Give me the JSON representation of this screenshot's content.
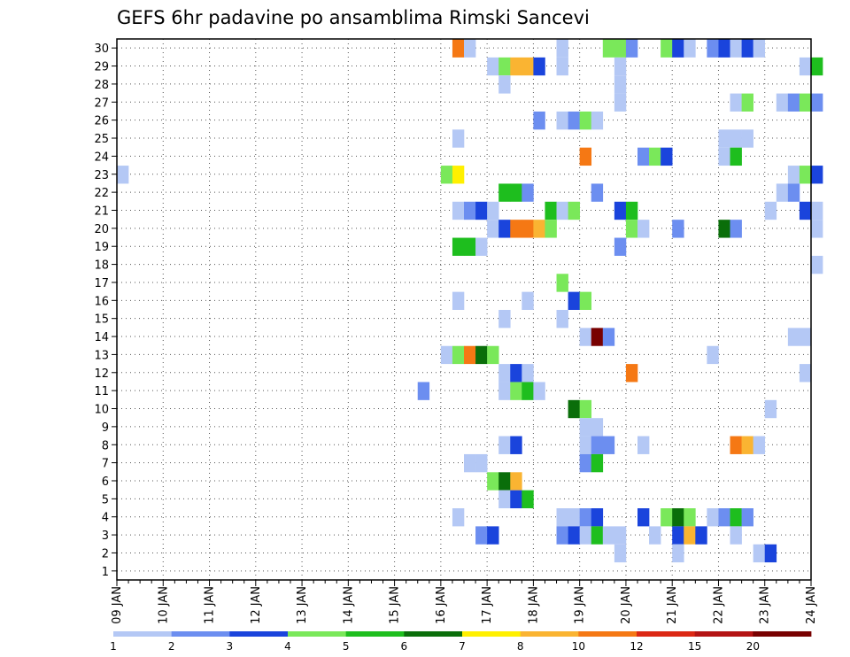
{
  "chart_data": {
    "type": "heatmap",
    "title": "GEFS 6hr padavine po ansamblima Rimski Sancevi",
    "xlabel": "",
    "ylabel": "",
    "x_tick_labels": [
      "09 JAN",
      "10 JAN",
      "11 JAN",
      "12 JAN",
      "13 JAN",
      "14 JAN",
      "15 JAN",
      "16 JAN",
      "17 JAN",
      "18 JAN",
      "19 JAN",
      "20 JAN",
      "21 JAN",
      "22 JAN",
      "23 JAN",
      "24 JAN"
    ],
    "y_tick_labels": [
      "1",
      "2",
      "3",
      "4",
      "5",
      "6",
      "7",
      "8",
      "9",
      "10",
      "11",
      "12",
      "13",
      "14",
      "15",
      "16",
      "17",
      "18",
      "19",
      "20",
      "21",
      "22",
      "23",
      "24",
      "25",
      "26",
      "27",
      "28",
      "29",
      "30"
    ],
    "x_step": "6hr",
    "x_range": [
      "09 JAN",
      "24 JAN"
    ],
    "y_range": [
      1,
      30
    ],
    "grid": true,
    "legend": {
      "placement": "bottom",
      "labels": [
        "1",
        "2",
        "3",
        "4",
        "5",
        "6",
        "7",
        "8",
        "10",
        "12",
        "15",
        "20"
      ],
      "colors": [
        "#b4c8f5",
        "#6c8ef0",
        "#1a44dc",
        "#7ae85a",
        "#1ebe1e",
        "#0a6e0a",
        "#fff000",
        "#fab432",
        "#f57814",
        "#dc2814",
        "#b41414",
        "#780000"
      ]
    },
    "class_colors": {
      "1": "#b4c8f5",
      "2": "#6c8ef0",
      "3": "#1a44dc",
      "4": "#7ae85a",
      "5": "#1ebe1e",
      "6": "#0a6e0a",
      "7": "#fff000",
      "8": "#fab432",
      "10": "#f57814",
      "12": "#dc2814",
      "15": "#b41414",
      "20": "#780000"
    },
    "cells": [
      [
        30,
        29,
        10
      ],
      [
        30,
        30,
        1
      ],
      [
        30,
        38,
        1
      ],
      [
        30,
        42,
        4
      ],
      [
        30,
        43,
        4
      ],
      [
        30,
        44,
        2
      ],
      [
        30,
        47,
        4
      ],
      [
        30,
        48,
        3
      ],
      [
        30,
        49,
        1
      ],
      [
        30,
        51,
        2
      ],
      [
        30,
        52,
        3
      ],
      [
        30,
        53,
        1
      ],
      [
        30,
        54,
        3
      ],
      [
        30,
        55,
        1
      ],
      [
        29,
        32,
        1
      ],
      [
        29,
        33,
        4
      ],
      [
        29,
        34,
        8
      ],
      [
        29,
        35,
        8
      ],
      [
        29,
        36,
        3
      ],
      [
        29,
        38,
        1
      ],
      [
        29,
        43,
        1
      ],
      [
        29,
        59,
        1
      ],
      [
        29,
        60,
        5
      ],
      [
        28,
        33,
        1
      ],
      [
        28,
        43,
        1
      ],
      [
        27,
        43,
        1
      ],
      [
        27,
        53,
        1
      ],
      [
        27,
        54,
        4
      ],
      [
        27,
        57,
        1
      ],
      [
        27,
        58,
        2
      ],
      [
        27,
        59,
        4
      ],
      [
        27,
        60,
        2
      ],
      [
        26,
        36,
        2
      ],
      [
        26,
        38,
        1
      ],
      [
        26,
        39,
        2
      ],
      [
        26,
        40,
        4
      ],
      [
        26,
        41,
        1
      ],
      [
        25,
        29,
        1
      ],
      [
        25,
        52,
        1
      ],
      [
        25,
        53,
        1
      ],
      [
        25,
        54,
        1
      ],
      [
        24,
        40,
        10
      ],
      [
        24,
        45,
        2
      ],
      [
        24,
        46,
        4
      ],
      [
        24,
        47,
        3
      ],
      [
        24,
        52,
        1
      ],
      [
        24,
        53,
        5
      ],
      [
        23,
        0,
        1
      ],
      [
        23,
        28,
        4
      ],
      [
        23,
        29,
        7
      ],
      [
        23,
        58,
        1
      ],
      [
        23,
        59,
        4
      ],
      [
        23,
        60,
        3
      ],
      [
        22,
        33,
        5
      ],
      [
        22,
        34,
        5
      ],
      [
        22,
        35,
        2
      ],
      [
        22,
        41,
        2
      ],
      [
        22,
        57,
        1
      ],
      [
        22,
        58,
        2
      ],
      [
        21,
        29,
        1
      ],
      [
        21,
        30,
        2
      ],
      [
        21,
        31,
        3
      ],
      [
        21,
        32,
        1
      ],
      [
        21,
        37,
        5
      ],
      [
        21,
        38,
        1
      ],
      [
        21,
        39,
        4
      ],
      [
        21,
        43,
        3
      ],
      [
        21,
        44,
        5
      ],
      [
        21,
        56,
        1
      ],
      [
        21,
        59,
        3
      ],
      [
        21,
        60,
        1
      ],
      [
        20,
        32,
        1
      ],
      [
        20,
        33,
        3
      ],
      [
        20,
        34,
        10
      ],
      [
        20,
        35,
        10
      ],
      [
        20,
        36,
        8
      ],
      [
        20,
        37,
        4
      ],
      [
        20,
        44,
        4
      ],
      [
        20,
        45,
        1
      ],
      [
        20,
        48,
        2
      ],
      [
        20,
        52,
        6
      ],
      [
        20,
        53,
        2
      ],
      [
        20,
        60,
        1
      ],
      [
        19,
        29,
        5
      ],
      [
        19,
        30,
        5
      ],
      [
        19,
        31,
        1
      ],
      [
        19,
        43,
        2
      ],
      [
        18,
        60,
        1
      ],
      [
        17,
        38,
        4
      ],
      [
        16,
        29,
        1
      ],
      [
        16,
        35,
        1
      ],
      [
        16,
        39,
        3
      ],
      [
        16,
        40,
        4
      ],
      [
        15,
        33,
        1
      ],
      [
        15,
        38,
        1
      ],
      [
        14,
        40,
        1
      ],
      [
        14,
        41,
        20
      ],
      [
        14,
        42,
        2
      ],
      [
        14,
        58,
        1
      ],
      [
        14,
        59,
        1
      ],
      [
        13,
        28,
        1
      ],
      [
        13,
        29,
        4
      ],
      [
        13,
        30,
        10
      ],
      [
        13,
        31,
        6
      ],
      [
        13,
        32,
        4
      ],
      [
        13,
        51,
        1
      ],
      [
        12,
        33,
        1
      ],
      [
        12,
        34,
        3
      ],
      [
        12,
        35,
        1
      ],
      [
        12,
        44,
        10
      ],
      [
        12,
        59,
        1
      ],
      [
        11,
        26,
        2
      ],
      [
        11,
        33,
        1
      ],
      [
        11,
        34,
        4
      ],
      [
        11,
        35,
        5
      ],
      [
        11,
        36,
        1
      ],
      [
        10,
        39,
        6
      ],
      [
        10,
        40,
        4
      ],
      [
        10,
        56,
        1
      ],
      [
        9,
        40,
        1
      ],
      [
        9,
        41,
        1
      ],
      [
        8,
        33,
        1
      ],
      [
        8,
        34,
        3
      ],
      [
        8,
        40,
        1
      ],
      [
        8,
        41,
        2
      ],
      [
        8,
        42,
        2
      ],
      [
        8,
        45,
        1
      ],
      [
        8,
        53,
        10
      ],
      [
        8,
        54,
        8
      ],
      [
        8,
        55,
        1
      ],
      [
        7,
        30,
        1
      ],
      [
        7,
        31,
        1
      ],
      [
        7,
        40,
        2
      ],
      [
        7,
        41,
        5
      ],
      [
        6,
        32,
        4
      ],
      [
        6,
        33,
        6
      ],
      [
        6,
        34,
        8
      ],
      [
        5,
        33,
        1
      ],
      [
        5,
        34,
        3
      ],
      [
        5,
        35,
        5
      ],
      [
        4,
        29,
        1
      ],
      [
        4,
        38,
        1
      ],
      [
        4,
        39,
        1
      ],
      [
        4,
        40,
        2
      ],
      [
        4,
        41,
        3
      ],
      [
        4,
        45,
        3
      ],
      [
        4,
        47,
        4
      ],
      [
        4,
        48,
        6
      ],
      [
        4,
        49,
        4
      ],
      [
        4,
        51,
        1
      ],
      [
        4,
        52,
        2
      ],
      [
        4,
        53,
        5
      ],
      [
        4,
        54,
        2
      ],
      [
        3,
        31,
        2
      ],
      [
        3,
        32,
        3
      ],
      [
        3,
        38,
        2
      ],
      [
        3,
        39,
        3
      ],
      [
        3,
        40,
        1
      ],
      [
        3,
        41,
        5
      ],
      [
        3,
        42,
        1
      ],
      [
        3,
        43,
        1
      ],
      [
        3,
        46,
        1
      ],
      [
        3,
        48,
        3
      ],
      [
        3,
        49,
        8
      ],
      [
        3,
        50,
        3
      ],
      [
        3,
        53,
        1
      ],
      [
        2,
        43,
        1
      ],
      [
        2,
        48,
        1
      ],
      [
        2,
        55,
        1
      ],
      [
        2,
        56,
        3
      ]
    ]
  }
}
